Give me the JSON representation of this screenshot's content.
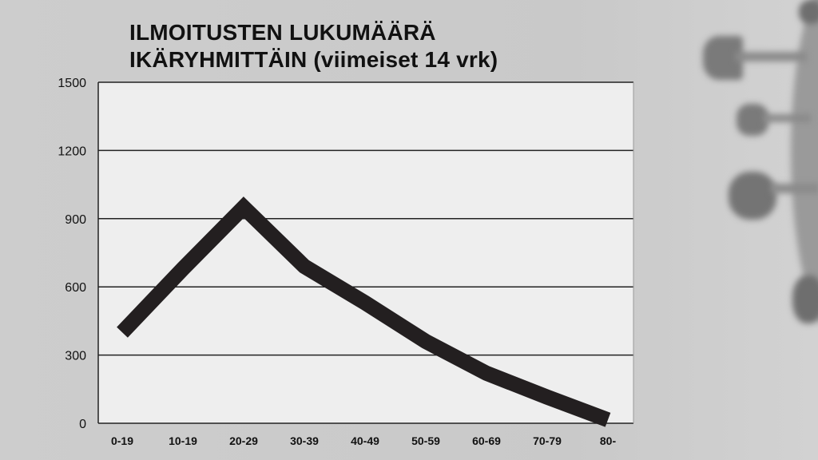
{
  "chart_data": {
    "type": "line",
    "title_lines": [
      "ILMOITUSTEN LUKUMÄÄRÄ",
      "IKÄRYHMITTÄIN (viimeiset 14 vrk)"
    ],
    "categories": [
      "0-19",
      "10-19",
      "20-29",
      "30-39",
      "40-49",
      "50-59",
      "60-69",
      "70-79",
      "80-"
    ],
    "values": [
      400,
      680,
      950,
      690,
      530,
      360,
      220,
      115,
      15
    ],
    "yticks": [
      "0",
      "300",
      "600",
      "900",
      "1200",
      "1500"
    ],
    "ylim": [
      0,
      1500
    ],
    "grid": true,
    "colors": {
      "line": "#231f20",
      "plot_bg": "#eeeeee",
      "background": "#cccccc"
    }
  }
}
